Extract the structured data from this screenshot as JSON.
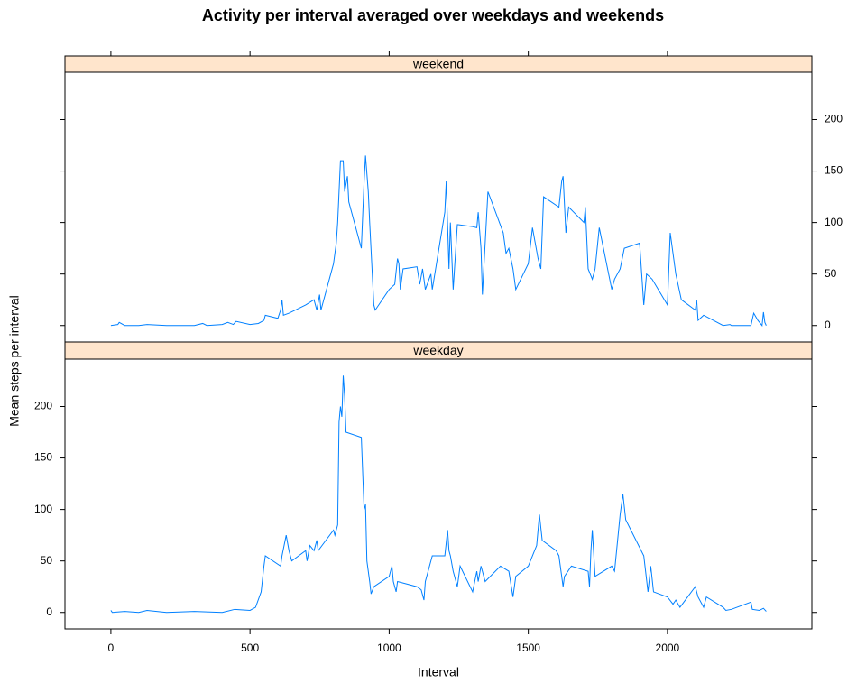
{
  "title": "Activity per interval averaged over weekdays and weekends",
  "x_label": "Interval",
  "y_label": "Mean steps per interval",
  "chart_data": [
    {
      "type": "line",
      "title": "weekend",
      "color": "#0080ff",
      "strip_color": "#ffe5cc",
      "x": [
        0,
        25,
        30,
        50,
        100,
        130,
        200,
        300,
        330,
        345,
        400,
        420,
        440,
        450,
        500,
        530,
        550,
        555,
        600,
        610,
        615,
        620,
        640,
        700,
        730,
        740,
        750,
        755,
        800,
        810,
        815,
        825,
        835,
        840,
        850,
        855,
        900,
        910,
        915,
        925,
        930,
        945,
        950,
        1000,
        1020,
        1030,
        1035,
        1040,
        1050,
        1100,
        1110,
        1120,
        1130,
        1150,
        1155,
        1200,
        1205,
        1215,
        1220,
        1230,
        1245,
        1300,
        1315,
        1320,
        1330,
        1335,
        1355,
        1410,
        1420,
        1430,
        1445,
        1455,
        1500,
        1515,
        1535,
        1545,
        1555,
        1610,
        1620,
        1625,
        1635,
        1645,
        1700,
        1705,
        1715,
        1730,
        1740,
        1755,
        1800,
        1810,
        1830,
        1845,
        1900,
        1915,
        1925,
        1945,
        2000,
        2010,
        2015,
        2030,
        2050,
        2100,
        2105,
        2110,
        2130,
        2200,
        2225,
        2230,
        2300,
        2310,
        2325,
        2340,
        2345,
        2350,
        2355
      ],
      "values": [
        0,
        1,
        3,
        0,
        0,
        1,
        0,
        0,
        2,
        0,
        1,
        3,
        1,
        4,
        1,
        2,
        5,
        10,
        7,
        15,
        25,
        10,
        12,
        20,
        25,
        15,
        30,
        15,
        60,
        80,
        100,
        160,
        160,
        130,
        145,
        120,
        75,
        140,
        165,
        130,
        100,
        20,
        15,
        35,
        40,
        65,
        60,
        35,
        55,
        57,
        40,
        55,
        35,
        50,
        35,
        110,
        140,
        55,
        100,
        35,
        98,
        96,
        95,
        110,
        75,
        30,
        130,
        90,
        70,
        75,
        55,
        35,
        60,
        95,
        65,
        55,
        125,
        115,
        140,
        145,
        90,
        115,
        100,
        115,
        55,
        45,
        55,
        95,
        35,
        45,
        55,
        75,
        80,
        20,
        50,
        45,
        20,
        90,
        80,
        50,
        25,
        15,
        25,
        5,
        10,
        0,
        1,
        0,
        0,
        12,
        5,
        0,
        13,
        3,
        0
      ],
      "xlim": [
        -165,
        2519
      ],
      "xticks": [
        0,
        500,
        1000,
        1500,
        2000
      ],
      "ylim": [
        -16,
        246
      ],
      "yticks": [
        0,
        50,
        100,
        150,
        200
      ]
    },
    {
      "type": "line",
      "title": "weekday",
      "color": "#0080ff",
      "strip_color": "#ffe5cc",
      "x": [
        0,
        5,
        50,
        100,
        130,
        200,
        300,
        400,
        445,
        500,
        520,
        540,
        550,
        555,
        610,
        615,
        630,
        640,
        650,
        700,
        705,
        715,
        730,
        740,
        745,
        800,
        805,
        815,
        820,
        825,
        830,
        835,
        840,
        845,
        900,
        910,
        915,
        920,
        930,
        935,
        945,
        1000,
        1010,
        1015,
        1025,
        1030,
        1100,
        1115,
        1125,
        1130,
        1145,
        1155,
        1200,
        1210,
        1215,
        1220,
        1230,
        1245,
        1255,
        1300,
        1315,
        1320,
        1330,
        1345,
        1400,
        1430,
        1445,
        1455,
        1500,
        1530,
        1540,
        1550,
        1600,
        1610,
        1625,
        1630,
        1655,
        1715,
        1720,
        1725,
        1730,
        1740,
        1800,
        1810,
        1830,
        1840,
        1850,
        1915,
        1930,
        1940,
        1950,
        2000,
        2020,
        2030,
        2045,
        2100,
        2110,
        2130,
        2140,
        2200,
        2210,
        2230,
        2300,
        2305,
        2330,
        2345,
        2355
      ],
      "values": [
        2,
        0,
        1,
        0,
        2,
        0,
        1,
        0,
        3,
        2,
        5,
        20,
        45,
        55,
        45,
        55,
        75,
        60,
        50,
        60,
        50,
        65,
        60,
        70,
        60,
        80,
        75,
        85,
        185,
        200,
        190,
        230,
        210,
        175,
        170,
        100,
        105,
        50,
        30,
        18,
        25,
        35,
        45,
        30,
        20,
        30,
        25,
        22,
        12,
        30,
        45,
        55,
        55,
        80,
        60,
        55,
        40,
        25,
        45,
        20,
        40,
        30,
        45,
        30,
        45,
        40,
        15,
        35,
        45,
        65,
        95,
        70,
        60,
        55,
        25,
        35,
        45,
        40,
        25,
        60,
        80,
        35,
        45,
        40,
        95,
        115,
        90,
        55,
        20,
        45,
        20,
        15,
        8,
        12,
        5,
        25,
        15,
        5,
        15,
        5,
        2,
        3,
        10,
        3,
        2,
        4,
        1
      ],
      "xlim": [
        -165,
        2519
      ],
      "xticks": [
        0,
        500,
        1000,
        1500,
        2000
      ],
      "ylim": [
        -16,
        246
      ],
      "yticks": [
        0,
        50,
        100,
        150,
        200
      ]
    }
  ]
}
